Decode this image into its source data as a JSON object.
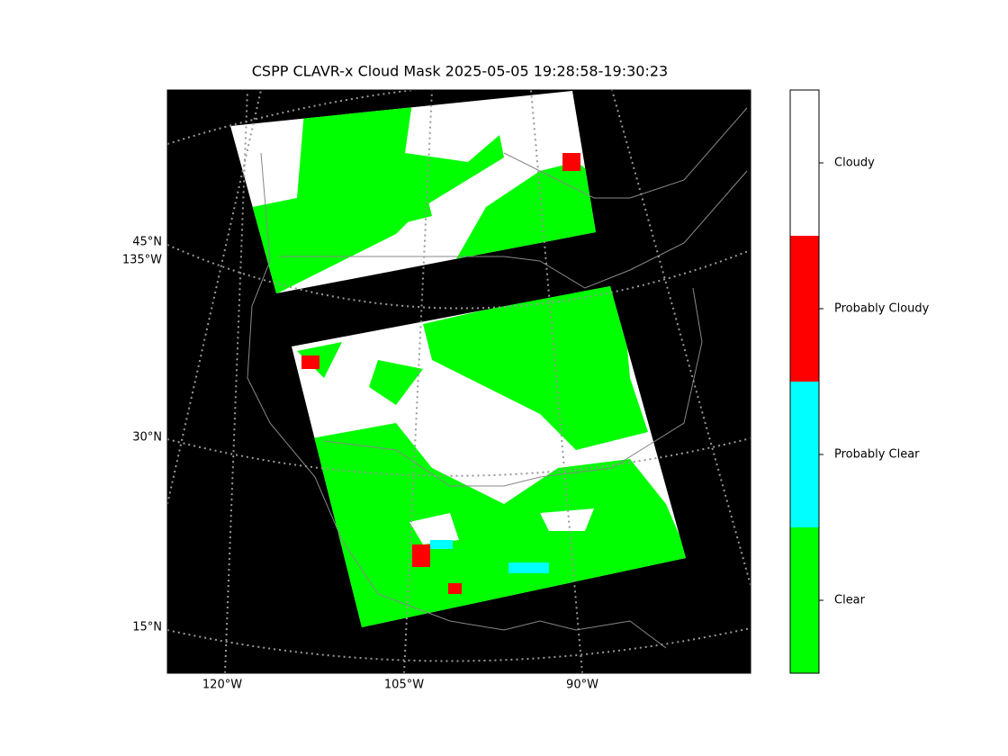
{
  "title": "CSPP CLAVR-x Cloud Mask 2025-05-05 19:28:58-19:30:23",
  "map": {
    "lat_labels": [
      "45°N",
      "30°N",
      "15°N"
    ],
    "lon_label_left": "135°W",
    "lon_labels_bottom": [
      "120°W",
      "105°W",
      "90°W"
    ],
    "background": "#000000"
  },
  "colorbar": {
    "classes": [
      {
        "label": "Cloudy",
        "color": "#ffffff"
      },
      {
        "label": "Probably Cloudy",
        "color": "#ff0000"
      },
      {
        "label": "Probably Clear",
        "color": "#00ffff"
      },
      {
        "label": "Clear",
        "color": "#00ff00"
      }
    ]
  }
}
